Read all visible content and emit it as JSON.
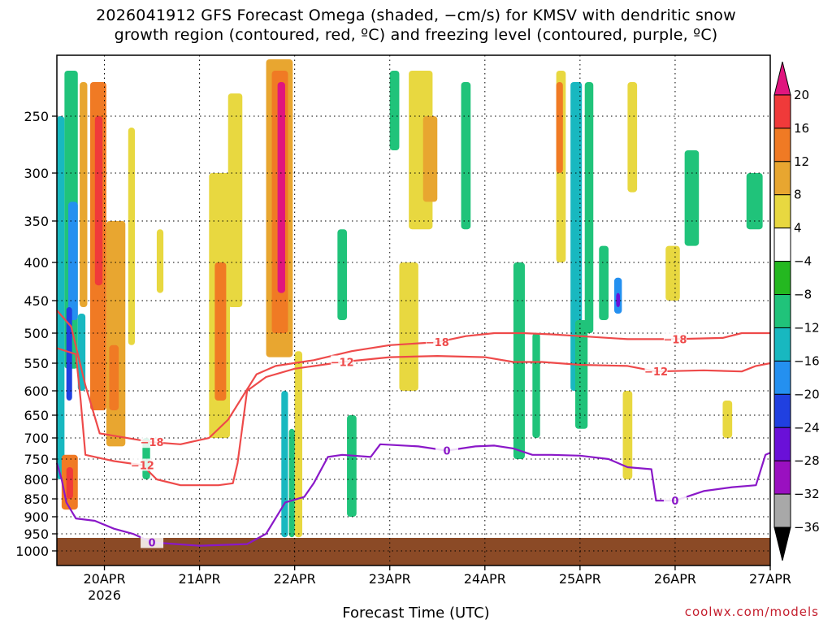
{
  "title_line1": "2026041912 GFS Forecast Omega (shaded, −cm/s) for KMSV with dendritic snow",
  "title_line2": "growth region (contoured, red, ºC) and freezing level (contoured, purple, ºC)",
  "xlabel": "Forecast Time (UTC)",
  "credit": "coolwx.com/models",
  "chart_data": {
    "type": "heatmap",
    "x_ticks": [
      {
        "label": "20APR",
        "day": 20
      },
      {
        "label": "21APR",
        "day": 21
      },
      {
        "label": "22APR",
        "day": 22
      },
      {
        "label": "23APR",
        "day": 23
      },
      {
        "label": "24APR",
        "day": 24
      },
      {
        "label": "25APR",
        "day": 25
      },
      {
        "label": "26APR",
        "day": 26
      },
      {
        "label": "27APR",
        "day": 27
      }
    ],
    "x_sublabel": "2026",
    "xlim_day": [
      19.5,
      27
    ],
    "y_ticks": [
      250,
      300,
      350,
      400,
      450,
      500,
      550,
      600,
      650,
      700,
      750,
      800,
      850,
      900,
      950,
      1000
    ],
    "ylim_hpa": [
      200,
      1000
    ],
    "grid": true,
    "colorbar": {
      "labels": [
        "20",
        "16",
        "12",
        "8",
        "4",
        "−4",
        "−8",
        "−12",
        "−16",
        "−20",
        "−24",
        "−28",
        "−32",
        "−36"
      ],
      "colors": [
        "#e0157e",
        "#f03a3a",
        "#f07a24",
        "#e8a630",
        "#e8d840",
        "#ffffff",
        "#24b820",
        "#20c37a",
        "#18b8c0",
        "#2490f0",
        "#2040e0",
        "#6a10d8",
        "#9a10c0",
        "#a8a8a8",
        "#000000"
      ]
    },
    "contours": [
      {
        "label": "−18",
        "color": "#ee4a4a",
        "points": [
          [
            19.5,
            465
          ],
          [
            19.65,
            490
          ],
          [
            19.8,
            590
          ],
          [
            19.95,
            690
          ],
          [
            20.5,
            710
          ],
          [
            20.8,
            715
          ],
          [
            21.1,
            700
          ],
          [
            21.3,
            660
          ],
          [
            21.6,
            570
          ],
          [
            21.8,
            555
          ],
          [
            22.2,
            545
          ],
          [
            22.6,
            530
          ],
          [
            23.0,
            520
          ],
          [
            23.5,
            515
          ],
          [
            23.8,
            505
          ],
          [
            24.1,
            500
          ],
          [
            24.4,
            500
          ],
          [
            24.7,
            502
          ],
          [
            25.0,
            505
          ],
          [
            25.5,
            510
          ],
          [
            26.0,
            510
          ],
          [
            26.5,
            508
          ],
          [
            26.7,
            500
          ],
          [
            27.0,
            500
          ]
        ]
      },
      {
        "label": "−12",
        "color": "#ee4a4a",
        "points": [
          [
            19.5,
            525
          ],
          [
            19.7,
            535
          ],
          [
            19.75,
            620
          ],
          [
            19.8,
            740
          ],
          [
            20.1,
            755
          ],
          [
            20.4,
            765
          ],
          [
            20.55,
            800
          ],
          [
            20.8,
            815
          ],
          [
            21.2,
            815
          ],
          [
            21.35,
            810
          ],
          [
            21.4,
            760
          ],
          [
            21.5,
            600
          ],
          [
            21.7,
            575
          ],
          [
            22.0,
            560
          ],
          [
            22.5,
            548
          ],
          [
            23.0,
            540
          ],
          [
            23.5,
            538
          ],
          [
            24.0,
            540
          ],
          [
            24.3,
            548
          ],
          [
            24.6,
            548
          ],
          [
            25.0,
            553
          ],
          [
            25.5,
            555
          ],
          [
            25.8,
            565
          ],
          [
            26.3,
            563
          ],
          [
            26.7,
            565
          ],
          [
            26.85,
            555
          ],
          [
            27.0,
            550
          ]
        ]
      },
      {
        "label": "0",
        "color": "#8a18c8",
        "points": [
          [
            19.5,
            760
          ],
          [
            19.55,
            800
          ],
          [
            19.6,
            860
          ],
          [
            19.7,
            905
          ],
          [
            19.9,
            912
          ],
          [
            20.1,
            935
          ],
          [
            20.3,
            950
          ],
          [
            20.5,
            975
          ],
          [
            21.0,
            985
          ],
          [
            21.5,
            980
          ],
          [
            21.7,
            950
          ],
          [
            21.9,
            860
          ],
          [
            22.1,
            845
          ],
          [
            22.2,
            810
          ],
          [
            22.35,
            745
          ],
          [
            22.5,
            740
          ],
          [
            22.8,
            745
          ],
          [
            22.9,
            715
          ],
          [
            23.3,
            720
          ],
          [
            23.6,
            730
          ],
          [
            23.9,
            720
          ],
          [
            24.1,
            718
          ],
          [
            24.3,
            725
          ],
          [
            24.5,
            740
          ],
          [
            24.7,
            740
          ],
          [
            25.0,
            742
          ],
          [
            25.3,
            750
          ],
          [
            25.5,
            770
          ],
          [
            25.75,
            775
          ],
          [
            25.8,
            855
          ],
          [
            26.0,
            855
          ],
          [
            26.3,
            830
          ],
          [
            26.6,
            820
          ],
          [
            26.85,
            815
          ],
          [
            26.95,
            740
          ],
          [
            27.0,
            735
          ]
        ]
      }
    ],
    "omega_cells": [
      {
        "d0": 19.5,
        "d1": 19.58,
        "p0": 250,
        "p1": 800,
        "v": -14
      },
      {
        "d0": 19.58,
        "d1": 19.72,
        "p0": 210,
        "p1": 560,
        "v": -10
      },
      {
        "d0": 19.62,
        "d1": 19.72,
        "p0": 330,
        "p1": 480,
        "v": -16
      },
      {
        "d0": 19.74,
        "d1": 19.82,
        "p0": 220,
        "p1": 460,
        "v": 8
      },
      {
        "d0": 19.6,
        "d1": 19.66,
        "p0": 460,
        "p1": 620,
        "v": -20
      },
      {
        "d0": 19.72,
        "d1": 19.8,
        "p0": 470,
        "p1": 600,
        "v": -12
      },
      {
        "d0": 19.85,
        "d1": 20.02,
        "p0": 220,
        "p1": 640,
        "v": 12
      },
      {
        "d0": 19.9,
        "d1": 19.98,
        "p0": 250,
        "p1": 430,
        "v": 18
      },
      {
        "d0": 20.02,
        "d1": 20.22,
        "p0": 350,
        "p1": 720,
        "v": 8
      },
      {
        "d0": 20.05,
        "d1": 20.15,
        "p0": 520,
        "p1": 640,
        "v": 12
      },
      {
        "d0": 19.55,
        "d1": 19.72,
        "p0": 740,
        "p1": 880,
        "v": 12
      },
      {
        "d0": 19.6,
        "d1": 19.67,
        "p0": 770,
        "p1": 850,
        "v": 18
      },
      {
        "d0": 20.25,
        "d1": 20.32,
        "p0": 260,
        "p1": 520,
        "v": 6
      },
      {
        "d0": 20.4,
        "d1": 20.48,
        "p0": 700,
        "p1": 800,
        "v": -8
      },
      {
        "d0": 20.55,
        "d1": 20.62,
        "p0": 360,
        "p1": 440,
        "v": 5
      },
      {
        "d0": 21.1,
        "d1": 21.32,
        "p0": 300,
        "p1": 700,
        "v": 6
      },
      {
        "d0": 21.16,
        "d1": 21.28,
        "p0": 400,
        "p1": 620,
        "v": 12
      },
      {
        "d0": 21.3,
        "d1": 21.45,
        "p0": 230,
        "p1": 460,
        "v": 5
      },
      {
        "d0": 21.7,
        "d1": 21.98,
        "p0": 200,
        "p1": 540,
        "v": 8
      },
      {
        "d0": 21.76,
        "d1": 21.93,
        "p0": 210,
        "p1": 500,
        "v": 14
      },
      {
        "d0": 21.82,
        "d1": 21.9,
        "p0": 220,
        "p1": 440,
        "v": 20
      },
      {
        "d0": 22.0,
        "d1": 22.08,
        "p0": 530,
        "p1": 960,
        "v": 6
      },
      {
        "d0": 21.86,
        "d1": 21.93,
        "p0": 600,
        "p1": 960,
        "v": -12
      },
      {
        "d0": 21.94,
        "d1": 22.0,
        "p0": 680,
        "p1": 960,
        "v": -8
      },
      {
        "d0": 22.45,
        "d1": 22.55,
        "p0": 360,
        "p1": 480,
        "v": -8
      },
      {
        "d0": 22.55,
        "d1": 22.65,
        "p0": 650,
        "p1": 900,
        "v": -8
      },
      {
        "d0": 23.0,
        "d1": 23.1,
        "p0": 210,
        "p1": 280,
        "v": -8
      },
      {
        "d0": 23.2,
        "d1": 23.45,
        "p0": 210,
        "p1": 360,
        "v": 6
      },
      {
        "d0": 23.35,
        "d1": 23.5,
        "p0": 250,
        "p1": 330,
        "v": 10
      },
      {
        "d0": 23.1,
        "d1": 23.3,
        "p0": 400,
        "p1": 600,
        "v": 5
      },
      {
        "d0": 23.75,
        "d1": 23.85,
        "p0": 220,
        "p1": 360,
        "v": -8
      },
      {
        "d0": 24.3,
        "d1": 24.42,
        "p0": 400,
        "p1": 750,
        "v": -8
      },
      {
        "d0": 24.5,
        "d1": 24.58,
        "p0": 500,
        "p1": 700,
        "v": -9
      },
      {
        "d0": 24.75,
        "d1": 24.85,
        "p0": 210,
        "p1": 400,
        "v": 6
      },
      {
        "d0": 24.9,
        "d1": 25.02,
        "p0": 220,
        "p1": 600,
        "v": -14
      },
      {
        "d0": 25.05,
        "d1": 25.14,
        "p0": 220,
        "p1": 500,
        "v": -10
      },
      {
        "d0": 24.95,
        "d1": 25.08,
        "p0": 480,
        "p1": 680,
        "v": -8
      },
      {
        "d0": 24.75,
        "d1": 24.82,
        "p0": 220,
        "p1": 300,
        "v": 12
      },
      {
        "d0": 25.2,
        "d1": 25.3,
        "p0": 380,
        "p1": 480,
        "v": -8
      },
      {
        "d0": 25.36,
        "d1": 25.44,
        "p0": 420,
        "p1": 470,
        "v": -18
      },
      {
        "d0": 25.38,
        "d1": 25.42,
        "p0": 440,
        "p1": 460,
        "v": -24
      },
      {
        "d0": 25.5,
        "d1": 25.6,
        "p0": 220,
        "p1": 320,
        "v": 6
      },
      {
        "d0": 25.45,
        "d1": 25.55,
        "p0": 600,
        "p1": 800,
        "v": 6
      },
      {
        "d0": 25.9,
        "d1": 26.05,
        "p0": 380,
        "p1": 450,
        "v": 5
      },
      {
        "d0": 26.1,
        "d1": 26.25,
        "p0": 280,
        "p1": 380,
        "v": -8
      },
      {
        "d0": 26.5,
        "d1": 26.6,
        "p0": 620,
        "p1": 700,
        "v": 5
      },
      {
        "d0": 26.75,
        "d1": 26.92,
        "p0": 300,
        "p1": 360,
        "v": -8
      }
    ]
  }
}
